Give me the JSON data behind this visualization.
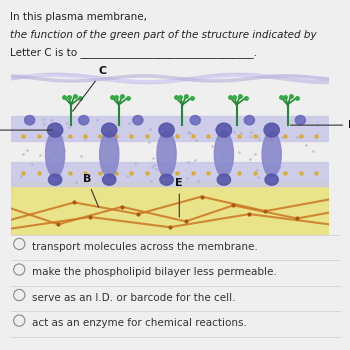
{
  "title_line1": "In this plasma membrane, ",
  "title_italic": "the function of the green part of the structure indicated by",
  "title_line2": "Letter C is to ___________________________________.",
  "bg_color": "#efefef",
  "image_bg": "#7ecfd4",
  "answer_choices": [
    "transport molecules across the membrane.",
    "make the phospholipid bilayer less permeable.",
    "serve as an I.D. or barcode for the cell.",
    "act as an enzyme for chemical reactions."
  ],
  "font_size_title": 7.5,
  "font_size_answers": 7.5,
  "font_size_labels": 8
}
